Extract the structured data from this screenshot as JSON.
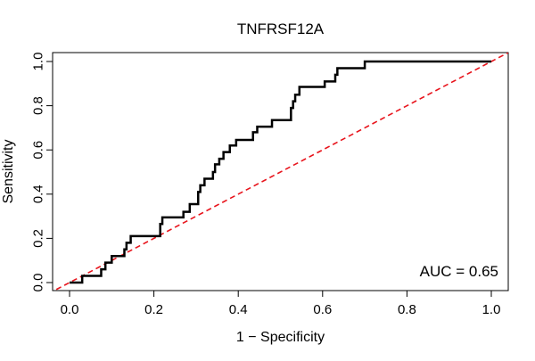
{
  "chart_data": {
    "type": "line",
    "title": "TNFRSF12A",
    "xlabel": "1 − Specificity",
    "ylabel": "Sensitivity",
    "xlim": [
      0,
      1
    ],
    "ylim": [
      0,
      1
    ],
    "x_ticks": [
      0.0,
      0.2,
      0.4,
      0.6,
      0.8,
      1.0
    ],
    "y_ticks": [
      0.0,
      0.2,
      0.4,
      0.6,
      0.8,
      1.0
    ],
    "x_tick_labels": [
      "0.0",
      "0.2",
      "0.4",
      "0.6",
      "0.8",
      "1.0"
    ],
    "y_tick_labels": [
      "0.0",
      "0.2",
      "0.4",
      "0.6",
      "0.8",
      "1.0"
    ],
    "annotation": "AUC = 0.65",
    "grid": false,
    "series": [
      {
        "name": "ROC curve",
        "style": "solid",
        "color": "#000000",
        "x": [
          0.0,
          0.03,
          0.03,
          0.075,
          0.075,
          0.085,
          0.085,
          0.1,
          0.1,
          0.13,
          0.13,
          0.135,
          0.135,
          0.145,
          0.145,
          0.215,
          0.215,
          0.22,
          0.22,
          0.27,
          0.27,
          0.285,
          0.285,
          0.305,
          0.305,
          0.31,
          0.31,
          0.32,
          0.32,
          0.34,
          0.34,
          0.345,
          0.345,
          0.355,
          0.355,
          0.365,
          0.365,
          0.38,
          0.38,
          0.395,
          0.395,
          0.435,
          0.435,
          0.445,
          0.445,
          0.48,
          0.48,
          0.525,
          0.525,
          0.53,
          0.53,
          0.535,
          0.535,
          0.545,
          0.545,
          0.605,
          0.605,
          0.63,
          0.63,
          0.635,
          0.635,
          0.645,
          0.645,
          0.7,
          0.7,
          1.0
        ],
        "y": [
          0.0,
          0.0,
          0.03,
          0.03,
          0.06,
          0.06,
          0.09,
          0.09,
          0.12,
          0.12,
          0.15,
          0.15,
          0.18,
          0.18,
          0.21,
          0.21,
          0.265,
          0.265,
          0.295,
          0.295,
          0.32,
          0.32,
          0.355,
          0.355,
          0.41,
          0.41,
          0.44,
          0.44,
          0.47,
          0.47,
          0.5,
          0.5,
          0.535,
          0.535,
          0.56,
          0.56,
          0.59,
          0.59,
          0.62,
          0.62,
          0.645,
          0.645,
          0.68,
          0.68,
          0.705,
          0.705,
          0.735,
          0.735,
          0.79,
          0.79,
          0.82,
          0.82,
          0.85,
          0.85,
          0.885,
          0.885,
          0.91,
          0.91,
          0.94,
          0.94,
          0.97,
          0.97,
          0.97,
          0.97,
          1.0,
          1.0
        ]
      },
      {
        "name": "chance line",
        "style": "dashed",
        "color": "#e8141c",
        "x": [
          -0.05,
          1.05
        ],
        "y": [
          -0.05,
          1.05
        ]
      }
    ]
  }
}
